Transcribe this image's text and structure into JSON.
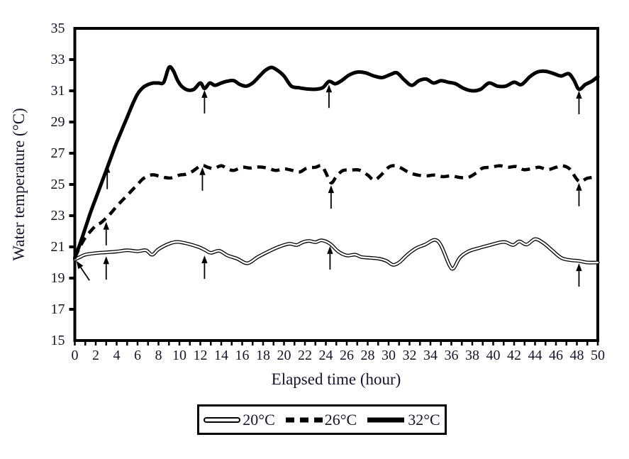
{
  "colors": {
    "line": "#000000",
    "text": "#15152a",
    "background": "#ffffff"
  },
  "chart_data": {
    "type": "line",
    "title": "",
    "xlabel": "Elapsed time (hour)",
    "ylabel": "Water temperature (°C)",
    "xlim": [
      0,
      50
    ],
    "ylim": [
      15,
      35
    ],
    "grid": false,
    "legend_position": "bottom",
    "x_tick_labels": [
      "0",
      "2",
      "4",
      "6",
      "8",
      "10",
      "12",
      "14",
      "16",
      "18",
      "20",
      "22",
      "24",
      "26",
      "28",
      "30",
      "32",
      "34",
      "36",
      "38",
      "40",
      "42",
      "44",
      "46",
      "48",
      "50"
    ],
    "x_label_step": 2,
    "x_minor_tick_step": 1,
    "y_tick_labels": [
      "15",
      "17",
      "19",
      "21",
      "23",
      "25",
      "27",
      "29",
      "31",
      "33",
      "35"
    ],
    "y_tick_step": 2,
    "series": [
      {
        "name": "20°C",
        "style": "double-line",
        "points": [
          [
            0,
            20.2
          ],
          [
            0.5,
            20.35
          ],
          [
            1,
            20.5
          ],
          [
            2,
            20.6
          ],
          [
            3,
            20.65
          ],
          [
            4,
            20.7
          ],
          [
            5,
            20.78
          ],
          [
            6,
            20.72
          ],
          [
            6.8,
            20.78
          ],
          [
            7.4,
            20.5
          ],
          [
            8,
            20.85
          ],
          [
            9,
            21.2
          ],
          [
            9.8,
            21.32
          ],
          [
            10.8,
            21.2
          ],
          [
            11.8,
            21.0
          ],
          [
            12.4,
            20.82
          ],
          [
            13,
            20.62
          ],
          [
            13.8,
            20.75
          ],
          [
            14.6,
            20.45
          ],
          [
            15.5,
            20.25
          ],
          [
            16.5,
            19.95
          ],
          [
            17.5,
            20.35
          ],
          [
            18.5,
            20.7
          ],
          [
            19.5,
            21.0
          ],
          [
            20.5,
            21.2
          ],
          [
            21.2,
            21.12
          ],
          [
            21.8,
            21.3
          ],
          [
            22.4,
            21.38
          ],
          [
            23,
            21.3
          ],
          [
            23.6,
            21.42
          ],
          [
            24.4,
            21.2
          ],
          [
            25.2,
            20.7
          ],
          [
            26,
            20.45
          ],
          [
            26.8,
            20.5
          ],
          [
            27.4,
            20.35
          ],
          [
            28.2,
            20.3
          ],
          [
            29,
            20.25
          ],
          [
            29.8,
            20.1
          ],
          [
            30.4,
            19.85
          ],
          [
            31,
            20.0
          ],
          [
            31.8,
            20.5
          ],
          [
            32.6,
            20.9
          ],
          [
            33.5,
            21.15
          ],
          [
            34.4,
            21.45
          ],
          [
            35,
            21.1
          ],
          [
            35.8,
            19.85
          ],
          [
            36.2,
            19.62
          ],
          [
            36.8,
            20.3
          ],
          [
            37.6,
            20.7
          ],
          [
            38.6,
            20.92
          ],
          [
            39.6,
            21.1
          ],
          [
            40.6,
            21.28
          ],
          [
            41.2,
            21.3
          ],
          [
            41.9,
            21.12
          ],
          [
            42.5,
            21.35
          ],
          [
            43.2,
            21.15
          ],
          [
            44,
            21.5
          ],
          [
            44.8,
            21.25
          ],
          [
            45.6,
            20.8
          ],
          [
            46.5,
            20.3
          ],
          [
            47.4,
            20.15
          ],
          [
            48.2,
            20.1
          ],
          [
            49,
            20.0
          ],
          [
            50,
            20.0
          ]
        ]
      },
      {
        "name": "26°C",
        "style": "dashed",
        "points": [
          [
            0,
            20.3
          ],
          [
            0.5,
            21.0
          ],
          [
            1,
            21.6
          ],
          [
            1.5,
            22.0
          ],
          [
            2,
            22.35
          ],
          [
            2.5,
            22.55
          ],
          [
            3,
            22.85
          ],
          [
            3.5,
            23.2
          ],
          [
            4,
            23.6
          ],
          [
            4.5,
            23.95
          ],
          [
            5,
            24.3
          ],
          [
            5.5,
            24.65
          ],
          [
            6,
            25.0
          ],
          [
            6.5,
            25.35
          ],
          [
            7,
            25.55
          ],
          [
            7.5,
            25.62
          ],
          [
            8,
            25.55
          ],
          [
            8.6,
            25.45
          ],
          [
            9.2,
            25.42
          ],
          [
            10,
            25.6
          ],
          [
            10.6,
            25.65
          ],
          [
            11.2,
            25.82
          ],
          [
            12.1,
            26.22
          ],
          [
            12.7,
            26.1
          ],
          [
            13.3,
            26.02
          ],
          [
            14,
            26.2
          ],
          [
            14.6,
            26.0
          ],
          [
            15.2,
            25.9
          ],
          [
            16,
            26.1
          ],
          [
            16.8,
            26.05
          ],
          [
            17.6,
            26.12
          ],
          [
            18.4,
            26.05
          ],
          [
            19.2,
            25.9
          ],
          [
            20,
            26.0
          ],
          [
            20.8,
            25.9
          ],
          [
            21.5,
            25.8
          ],
          [
            22.2,
            26.05
          ],
          [
            23,
            26.1
          ],
          [
            23.6,
            26.2
          ],
          [
            24,
            25.75
          ],
          [
            24.5,
            25.1
          ],
          [
            25,
            25.5
          ],
          [
            25.6,
            25.88
          ],
          [
            26.4,
            25.92
          ],
          [
            27.2,
            25.92
          ],
          [
            28,
            25.6
          ],
          [
            28.6,
            25.28
          ],
          [
            29.2,
            25.55
          ],
          [
            30,
            26.1
          ],
          [
            30.6,
            26.2
          ],
          [
            31.2,
            26.05
          ],
          [
            32,
            25.75
          ],
          [
            32.8,
            25.6
          ],
          [
            33.6,
            25.55
          ],
          [
            34.4,
            25.6
          ],
          [
            35.2,
            25.5
          ],
          [
            36,
            25.55
          ],
          [
            36.8,
            25.45
          ],
          [
            37.6,
            25.45
          ],
          [
            38.4,
            25.75
          ],
          [
            39,
            26.05
          ],
          [
            39.8,
            26.1
          ],
          [
            40.6,
            26.2
          ],
          [
            41.4,
            26.1
          ],
          [
            42.2,
            26.15
          ],
          [
            42.9,
            25.95
          ],
          [
            43.6,
            26.0
          ],
          [
            44.4,
            26.1
          ],
          [
            45.2,
            25.95
          ],
          [
            46,
            26.1
          ],
          [
            46.6,
            26.2
          ],
          [
            47.3,
            26.0
          ],
          [
            48.2,
            25.2
          ],
          [
            49,
            25.4
          ],
          [
            50,
            25.5
          ]
        ]
      },
      {
        "name": "32°C",
        "style": "solid",
        "points": [
          [
            0,
            20.3
          ],
          [
            0.5,
            21.2
          ],
          [
            1,
            22.2
          ],
          [
            1.5,
            23.2
          ],
          [
            2,
            24.1
          ],
          [
            2.5,
            25.0
          ],
          [
            3,
            25.9
          ],
          [
            3.5,
            26.8
          ],
          [
            4,
            27.7
          ],
          [
            4.5,
            28.5
          ],
          [
            5,
            29.3
          ],
          [
            5.5,
            30.1
          ],
          [
            6,
            30.8
          ],
          [
            6.5,
            31.2
          ],
          [
            7,
            31.4
          ],
          [
            7.5,
            31.5
          ],
          [
            8,
            31.5
          ],
          [
            8.5,
            31.55
          ],
          [
            9,
            32.5
          ],
          [
            9.4,
            32.3
          ],
          [
            9.8,
            31.7
          ],
          [
            10.2,
            31.3
          ],
          [
            10.8,
            31.05
          ],
          [
            11.4,
            31.1
          ],
          [
            12,
            31.5
          ],
          [
            12.4,
            31.15
          ],
          [
            12.9,
            31.5
          ],
          [
            13.4,
            31.35
          ],
          [
            14,
            31.5
          ],
          [
            14.6,
            31.62
          ],
          [
            15.2,
            31.65
          ],
          [
            15.8,
            31.4
          ],
          [
            16.4,
            31.3
          ],
          [
            17,
            31.5
          ],
          [
            17.6,
            31.9
          ],
          [
            18.2,
            32.3
          ],
          [
            18.8,
            32.5
          ],
          [
            19.4,
            32.3
          ],
          [
            20,
            31.95
          ],
          [
            20.7,
            31.3
          ],
          [
            21.4,
            31.2
          ],
          [
            22.2,
            31.12
          ],
          [
            23,
            31.1
          ],
          [
            23.7,
            31.2
          ],
          [
            24.3,
            31.6
          ],
          [
            24.9,
            31.45
          ],
          [
            25.5,
            31.65
          ],
          [
            26.2,
            32.0
          ],
          [
            27,
            32.2
          ],
          [
            27.8,
            32.15
          ],
          [
            28.6,
            31.95
          ],
          [
            29.4,
            31.85
          ],
          [
            30.2,
            32.05
          ],
          [
            30.8,
            32.15
          ],
          [
            31.5,
            31.7
          ],
          [
            32.2,
            31.35
          ],
          [
            32.9,
            31.65
          ],
          [
            33.6,
            31.75
          ],
          [
            34.3,
            31.5
          ],
          [
            35,
            31.65
          ],
          [
            35.7,
            31.55
          ],
          [
            36.4,
            31.45
          ],
          [
            37.2,
            31.15
          ],
          [
            38,
            31.0
          ],
          [
            38.8,
            31.1
          ],
          [
            39.6,
            31.5
          ],
          [
            40.4,
            31.3
          ],
          [
            41.2,
            31.3
          ],
          [
            42,
            31.55
          ],
          [
            42.7,
            31.4
          ],
          [
            43.5,
            31.9
          ],
          [
            44.2,
            32.2
          ],
          [
            45,
            32.25
          ],
          [
            45.8,
            32.1
          ],
          [
            46.5,
            31.95
          ],
          [
            47.2,
            32.1
          ],
          [
            47.7,
            31.7
          ],
          [
            48.2,
            31.1
          ],
          [
            48.8,
            31.4
          ],
          [
            49.4,
            31.6
          ],
          [
            50,
            31.9
          ]
        ]
      }
    ],
    "annotations": {
      "arrows": [
        {
          "type": "diagonal",
          "target": "start-point",
          "tip_x": 0.15,
          "tip_y": 20.1,
          "tail_x": 1.4,
          "tail_y": 18.85
        },
        {
          "type": "vertical",
          "target": "20C",
          "x": 3,
          "tip": 20.4,
          "tail": 18.9
        },
        {
          "type": "vertical",
          "target": "26C",
          "x": 3,
          "tip": 22.6,
          "tail": 21.1
        },
        {
          "type": "vertical",
          "target": "32C",
          "x": 3.1,
          "tip": 26.25,
          "tail": 24.7
        },
        {
          "type": "vertical",
          "target": "20C",
          "x": 12.4,
          "tip": 20.45,
          "tail": 18.95
        },
        {
          "type": "vertical",
          "target": "26C",
          "x": 12.2,
          "tip": 26.1,
          "tail": 24.6
        },
        {
          "type": "vertical",
          "target": "32C",
          "x": 12.4,
          "tip": 31.05,
          "tail": 29.55
        },
        {
          "type": "vertical",
          "target": "20C",
          "x": 24.4,
          "tip": 21.05,
          "tail": 19.55
        },
        {
          "type": "vertical",
          "target": "26C",
          "x": 24.5,
          "tip": 24.95,
          "tail": 23.45
        },
        {
          "type": "vertical",
          "target": "32C",
          "x": 24.3,
          "tip": 31.4,
          "tail": 29.9
        },
        {
          "type": "vertical",
          "target": "20C",
          "x": 48.2,
          "tip": 19.95,
          "tail": 18.45
        },
        {
          "type": "vertical",
          "target": "26C",
          "x": 48.2,
          "tip": 25.1,
          "tail": 23.6
        },
        {
          "type": "vertical",
          "target": "32C",
          "x": 48.2,
          "tip": 31.0,
          "tail": 29.5
        }
      ]
    },
    "legend": [
      {
        "label": "20°C",
        "style": "double-line"
      },
      {
        "label": "26°C",
        "style": "dashed"
      },
      {
        "label": "32°C",
        "style": "solid"
      }
    ]
  }
}
